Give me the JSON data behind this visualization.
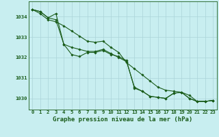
{
  "title": "Graphe pression niveau de la mer (hPa)",
  "background_color": "#c8eef0",
  "grid_color": "#aad4d8",
  "line_color": "#1a5c1a",
  "xlim": [
    -0.5,
    23.5
  ],
  "ylim": [
    1029.45,
    1034.75
  ],
  "yticks": [
    1030,
    1031,
    1032,
    1033,
    1034
  ],
  "xticks": [
    0,
    1,
    2,
    3,
    4,
    5,
    6,
    7,
    8,
    9,
    10,
    11,
    12,
    13,
    14,
    15,
    16,
    17,
    18,
    19,
    20,
    21,
    22,
    23
  ],
  "series1": [
    1034.35,
    1034.25,
    1033.95,
    1034.15,
    1032.65,
    1032.15,
    1032.05,
    1032.25,
    1032.25,
    1032.35,
    1032.15,
    1032.05,
    1031.85,
    1030.5,
    1030.35,
    1030.1,
    1030.05,
    1030.0,
    1030.25,
    1030.3,
    1030.0,
    1029.85,
    1029.85,
    1029.9
  ],
  "series2": [
    1034.35,
    1034.25,
    1033.95,
    1033.85,
    1032.65,
    1032.5,
    1032.4,
    1032.3,
    1032.3,
    1032.4,
    1032.2,
    1032.0,
    1031.8,
    1030.55,
    1030.35,
    1030.1,
    1030.05,
    1030.0,
    1030.25,
    1030.3,
    1030.0,
    1029.85,
    1029.85,
    1029.9
  ],
  "series3": [
    1034.35,
    1034.15,
    1033.85,
    1033.75,
    1033.55,
    1033.3,
    1033.05,
    1032.8,
    1032.75,
    1032.8,
    1032.5,
    1032.25,
    1031.75,
    1031.45,
    1031.15,
    1030.85,
    1030.55,
    1030.4,
    1030.35,
    1030.3,
    1030.15,
    1029.85,
    1029.85,
    1029.9
  ],
  "line_width": 0.8,
  "marker_size": 1.8,
  "title_fontsize": 6.5,
  "tick_fontsize": 5.2
}
